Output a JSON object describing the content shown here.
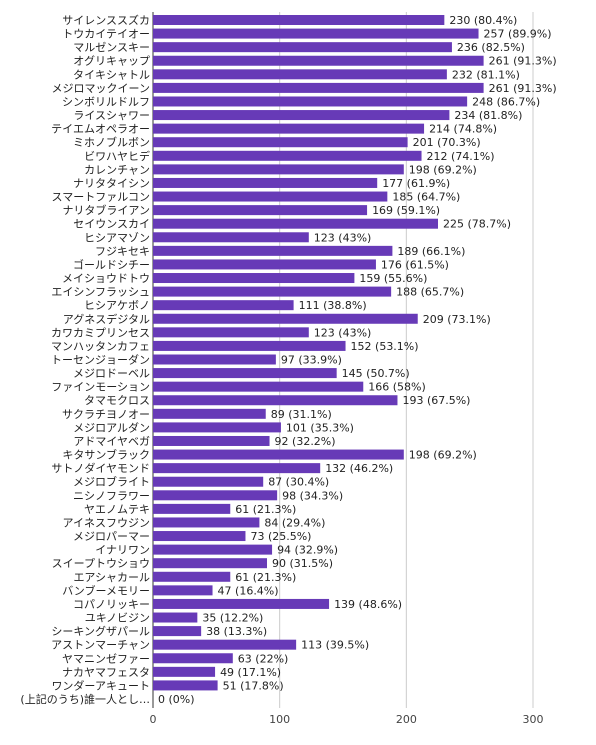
{
  "chart_data": {
    "type": "bar",
    "orientation": "horizontal",
    "bar_color": "#673ab7",
    "grid_color": "#cccccc",
    "grid": true,
    "xlim": [
      0,
      300
    ],
    "xticks": [
      "0",
      "100",
      "200",
      "300"
    ],
    "categories": [
      "サイレンススズカ",
      "トウカイテイオー",
      "マルゼンスキー",
      "オグリキャップ",
      "タイキシャトル",
      "メジロマックイーン",
      "シンボリルドルフ",
      "ライスシャワー",
      "テイエムオペラオー",
      "ミホノブルボン",
      "ビワハヤヒデ",
      "カレンチャン",
      "ナリタタイシン",
      "スマートファルコン",
      "ナリタブライアン",
      "セイウンスカイ",
      "ヒシアマゾン",
      "フジキセキ",
      "ゴールドシチー",
      "メイショウドトウ",
      "エイシンフラッシュ",
      "ヒシアケボノ",
      "アグネスデジタル",
      "カワカミプリンセス",
      "マンハッタンカフェ",
      "トーセンジョーダン",
      "メジロドーベル",
      "ファインモーション",
      "タマモクロス",
      "サクラチヨノオー",
      "メジロアルダン",
      "アドマイヤベガ",
      "キタサンブラック",
      "サトノダイヤモンド",
      "メジロブライト",
      "ニシノフラワー",
      "ヤエノムテキ",
      "アイネスフウジン",
      "メジロパーマー",
      "イナリワン",
      "スイープトウショウ",
      "エアシャカール",
      "バンブーメモリー",
      "コパノリッキー",
      "ユキノビジン",
      "シーキングザパール",
      "アストンマーチャン",
      "ヤマニンゼファー",
      "ナカヤマフェスタ",
      "ワンダーアキュート",
      "(上記のうち)誰一人とし…"
    ],
    "values": [
      230,
      257,
      236,
      261,
      232,
      261,
      248,
      234,
      214,
      201,
      212,
      198,
      177,
      185,
      169,
      225,
      123,
      189,
      176,
      159,
      188,
      111,
      209,
      123,
      152,
      97,
      145,
      166,
      193,
      89,
      101,
      92,
      198,
      132,
      87,
      98,
      61,
      84,
      73,
      94,
      90,
      61,
      47,
      139,
      35,
      38,
      113,
      63,
      49,
      51,
      0
    ],
    "data_labels": [
      "230 (80.4%)",
      "257 (89.9%)",
      "236 (82.5%)",
      "261 (91.3%)",
      "232 (81.1%)",
      "261 (91.3%)",
      "248 (86.7%)",
      "234 (81.8%)",
      "214 (74.8%)",
      "201 (70.3%)",
      "212 (74.1%)",
      "198 (69.2%)",
      "177 (61.9%)",
      "185 (64.7%)",
      "169 (59.1%)",
      "225 (78.7%)",
      "123 (43%)",
      "189 (66.1%)",
      "176 (61.5%)",
      "159 (55.6%)",
      "188 (65.7%)",
      "111 (38.8%)",
      "209 (73.1%)",
      "123 (43%)",
      "152 (53.1%)",
      "97 (33.9%)",
      "145 (50.7%)",
      "166 (58%)",
      "193 (67.5%)",
      "89 (31.1%)",
      "101 (35.3%)",
      "92 (32.2%)",
      "198 (69.2%)",
      "132 (46.2%)",
      "87 (30.4%)",
      "98 (34.3%)",
      "61 (21.3%)",
      "84 (29.4%)",
      "73 (25.5%)",
      "94 (32.9%)",
      "90 (31.5%)",
      "61 (21.3%)",
      "47 (16.4%)",
      "139 (48.6%)",
      "35 (12.2%)",
      "38 (13.3%)",
      "113 (39.5%)",
      "63 (22%)",
      "49 (17.1%)",
      "51 (17.8%)",
      "0 (0%)"
    ]
  }
}
